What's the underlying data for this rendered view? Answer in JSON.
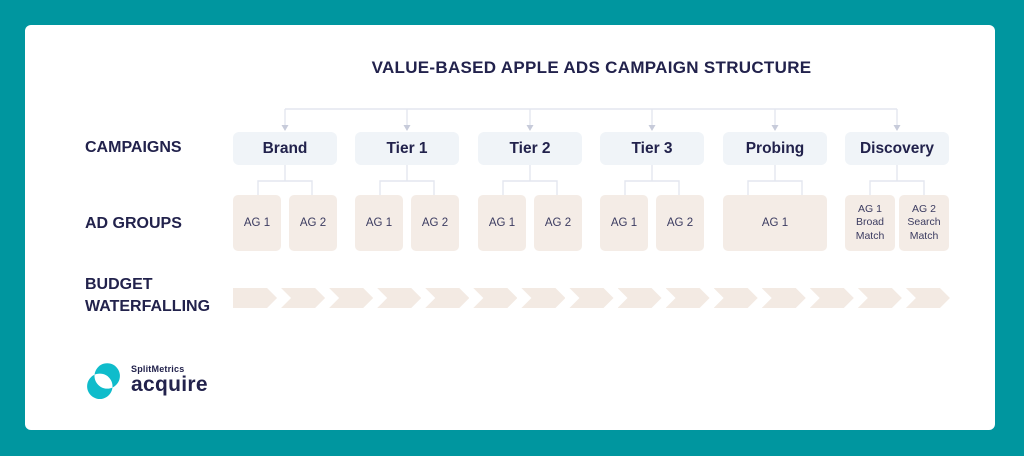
{
  "title": "VALUE-BASED APPLE ADS CAMPAIGN STRUCTURE",
  "rows": {
    "campaigns_label": "CAMPAIGNS",
    "ad_groups_label": "AD GROUPS",
    "budget_label": "BUDGET WATERFALLING"
  },
  "campaigns": [
    {
      "label": "Brand",
      "ad_groups": [
        "AG 1",
        "AG 2"
      ]
    },
    {
      "label": "Tier 1",
      "ad_groups": [
        "AG 1",
        "AG 2"
      ]
    },
    {
      "label": "Tier 2",
      "ad_groups": [
        "AG 1",
        "AG 2"
      ]
    },
    {
      "label": "Tier 3",
      "ad_groups": [
        "AG 1",
        "AG 2"
      ]
    },
    {
      "label": "Probing",
      "ad_groups": [
        "AG 1"
      ]
    },
    {
      "label": "Discovery",
      "ad_groups": [
        "AG 1 Broad Match",
        "AG 2 Search Match"
      ]
    }
  ],
  "budget_waterfalling": {
    "arrow_count": 15
  },
  "logo": {
    "brand": "SplitMetrics",
    "product": "acquire"
  },
  "colors": {
    "teal-bg": "#00969F",
    "card": "#FFFFFF",
    "navy": "#22224C",
    "ag-text": "#3B3B60",
    "campaign-box": "#F0F4F8",
    "ag-box": "#F4ECE6",
    "chevron": "#F3EAE3",
    "connector": "#E3E6EF",
    "logo-teal": "#0FBCCB"
  }
}
